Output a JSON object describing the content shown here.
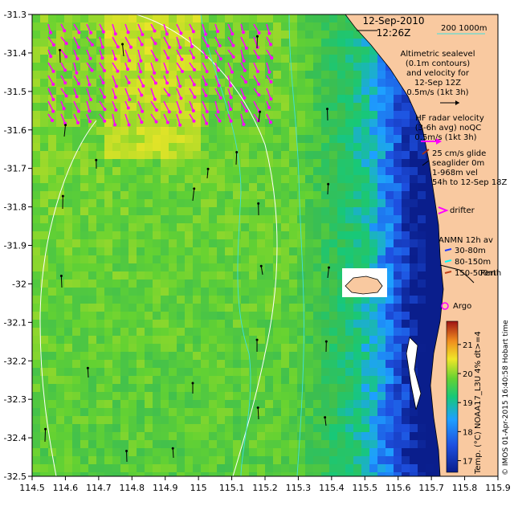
{
  "header": {
    "date": "12-Sep-2010",
    "time": "12:26Z",
    "depth_label": "200  1000m"
  },
  "legend": {
    "altimetric": [
      "Altimetric sealevel",
      "(0.1m contours)",
      "and velocity for",
      "12-Sep 12Z",
      "0.5m/s (1kt 3h)"
    ],
    "hf_radar": [
      "HF radar velocity",
      "(3-6h avg) noQC",
      "0.5m/s (1kt 3h)"
    ],
    "seaglider": [
      "25 cm/s glide",
      "seaglider 0m",
      "1-968m vel",
      "54h to 12-Sep 18Z"
    ],
    "drifter": "drifter",
    "anmn_title": "ANMN 12h av",
    "anmn_items": [
      "30-80m",
      "80-150m",
      "150-500m"
    ],
    "city": "Perth",
    "argo": "Argo"
  },
  "colorbar": {
    "ticks": [
      {
        "value": 17,
        "label": "17"
      },
      {
        "value": 18,
        "label": "18"
      },
      {
        "value": 19,
        "label": "19"
      },
      {
        "value": 20,
        "label": "20"
      },
      {
        "value": 21,
        "label": "21"
      }
    ],
    "caption": "Temp. (°C) NOAA17_L3U 4% dt>=4",
    "range": [
      16.6,
      21.8
    ]
  },
  "credit": "© IMOS 01-Apr-2015 16:40:58 Hobart time",
  "axes": {
    "x_ticks": [
      "114.5",
      "114.6",
      "114.7",
      "114.8",
      "114.9",
      "115",
      "115.1",
      "115.2",
      "115.3",
      "115.4",
      "115.5",
      "115.6",
      "115.7",
      "115.8",
      "115.9"
    ],
    "y_ticks": [
      "-31.3",
      "-31.4",
      "-31.5",
      "-31.6",
      "-31.7",
      "-31.8",
      "-31.9",
      "-32",
      "-32.1",
      "-32.2",
      "-32.3",
      "-32.4",
      "-32.5"
    ],
    "lon_range": [
      114.5,
      115.9
    ],
    "lat_range": [
      -32.5,
      -31.3
    ]
  },
  "colors": {
    "land": "#f9c9a0",
    "hf_arrow": "#ff00ff",
    "anmn_30_80": "#1e3cff",
    "anmn_80_150": "#00ffff",
    "anmn_150_500": "#c0401a",
    "contour": "#ffffff",
    "isobath": "#40e0e0"
  }
}
